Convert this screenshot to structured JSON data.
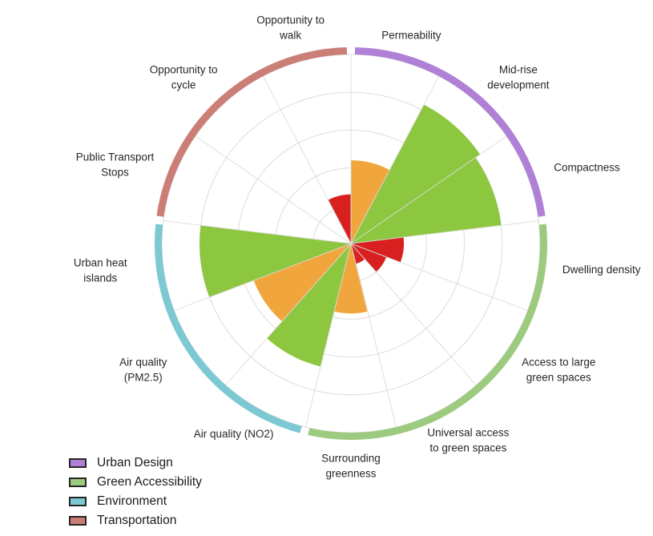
{
  "chart_data": {
    "type": "bar",
    "subtype": "polar-rose",
    "direction": "clockwise",
    "start_angle_deg": 0,
    "rings": 5,
    "value_range": [
      0,
      1
    ],
    "grid": true,
    "categories": [
      "Permeability",
      "Mid-rise development",
      "Compactness",
      "Dwelling density",
      "Access to large green spaces",
      "Universal access to green spaces",
      "Surrounding greenness",
      "Air quality (NO2)",
      "Air quality (PM2.5)",
      "Urban heat islands",
      "Public Transport Stops",
      "Opportunity to cycle",
      "Opportunity to walk"
    ],
    "category_label_lines": [
      [
        "Permeability"
      ],
      [
        "Mid-rise",
        "development"
      ],
      [
        "Compactness"
      ],
      [
        "Dwelling density"
      ],
      [
        "Access to large",
        "green spaces"
      ],
      [
        "Universal access",
        "to green spaces"
      ],
      [
        "Surrounding",
        "greenness"
      ],
      [
        "Air quality (NO2)"
      ],
      [
        "Air quality",
        "(PM2.5)"
      ],
      [
        "Urban heat",
        "islands"
      ],
      [
        "Public Transport",
        "Stops"
      ],
      [
        "Opportunity to",
        "cycle"
      ],
      [
        "Opportunity to",
        "walk"
      ]
    ],
    "values": [
      0.44,
      0.83,
      0.8,
      0.28,
      0.2,
      0.11,
      0.37,
      0.67,
      0.55,
      0.8,
      0,
      0,
      0.26
    ],
    "bar_colors": [
      "orange",
      "green",
      "green",
      "red",
      "red",
      "red",
      "orange",
      "green",
      "orange",
      "green",
      null,
      null,
      "red"
    ],
    "palette": {
      "green": "#8DC63F",
      "orange": "#F0A63C",
      "red": "#D7201F"
    },
    "grid_color": "#DBDBDB",
    "label_color": "#262626",
    "groups": [
      {
        "name": "Urban Design",
        "color": "#AF80D5",
        "sectors": [
          0,
          1,
          2
        ]
      },
      {
        "name": "Green Accessibility",
        "color": "#9CCB7F",
        "sectors": [
          3,
          4,
          5,
          6
        ]
      },
      {
        "name": "Environment",
        "color": "#7CC8D3",
        "sectors": [
          7,
          8,
          9
        ]
      },
      {
        "name": "Transportation",
        "color": "#CB7E75",
        "sectors": [
          10,
          11,
          12
        ]
      }
    ],
    "legend": {
      "position": "bottom-left"
    }
  }
}
